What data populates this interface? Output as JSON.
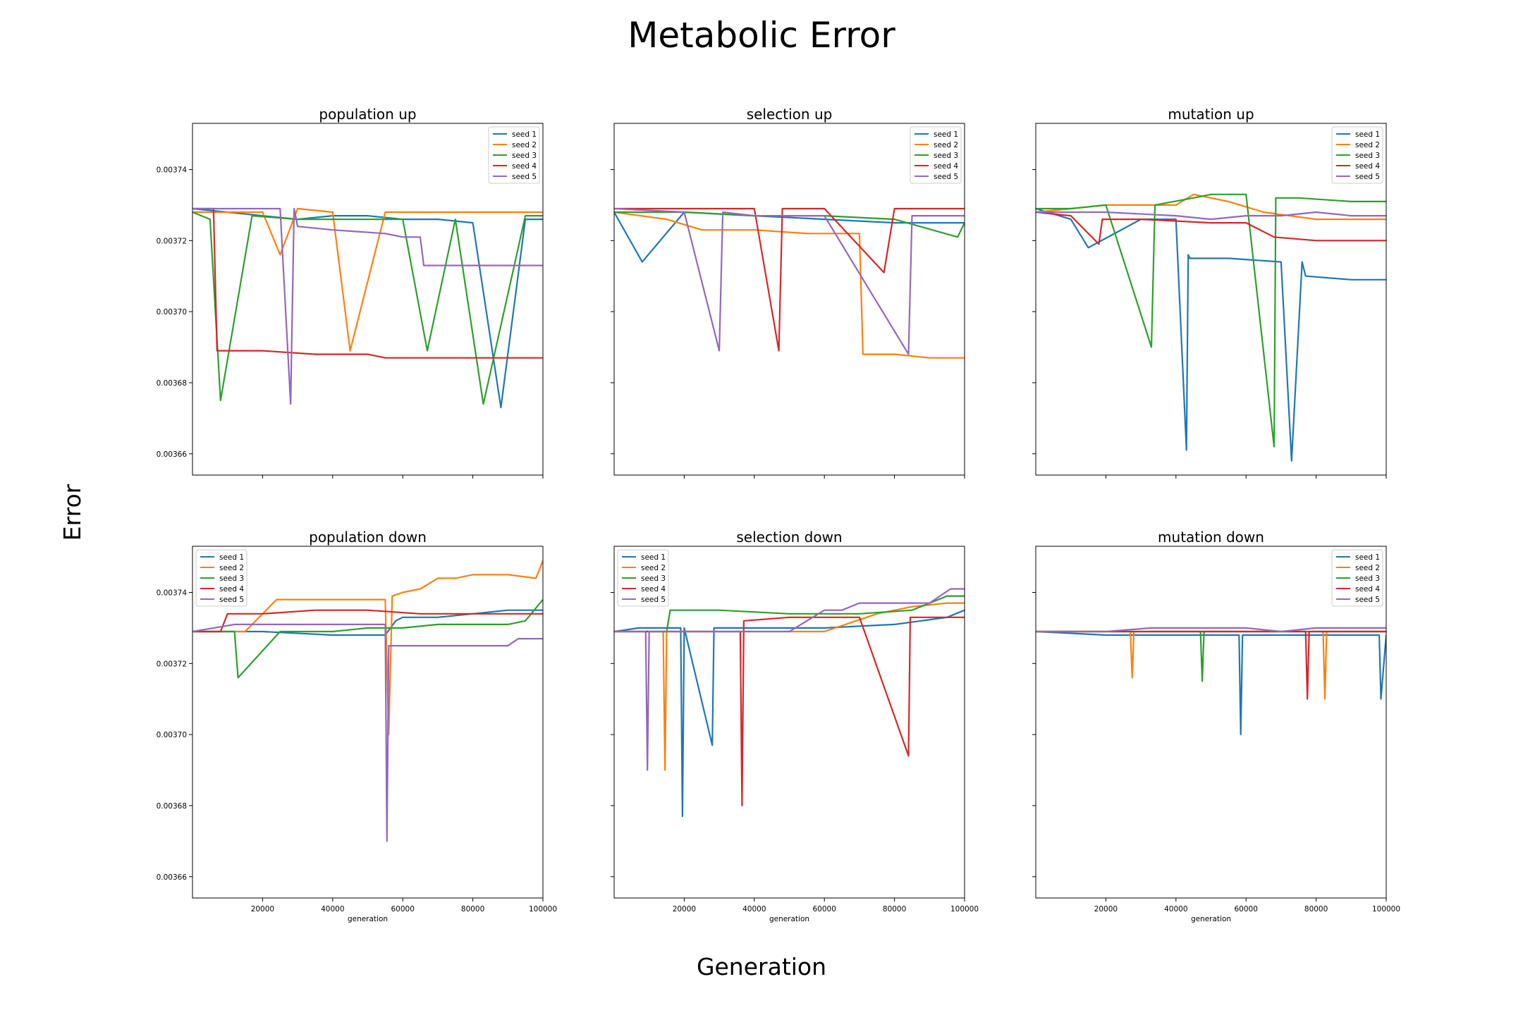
{
  "figure": {
    "title": "Metabolic Error",
    "xlabel": "Generation",
    "ylabel": "Error"
  },
  "colors": {
    "seed 1": "#1f77b4",
    "seed 2": "#ff7f0e",
    "seed 3": "#2ca02c",
    "seed 4": "#d62728",
    "seed 5": "#9467bd"
  },
  "chart_data": [
    {
      "type": "line",
      "title": "population up",
      "xlabel": "",
      "ylabel": "",
      "xlim": [
        0,
        100000
      ],
      "ylim": [
        0.003654,
        0.003753
      ],
      "x_ticks": [],
      "y_ticks": [
        "0.00366",
        "0.00368",
        "0.00370",
        "0.00372",
        "0.00374"
      ],
      "legend": "top-right",
      "series": [
        {
          "name": "seed 1",
          "x": [
            0,
            10000,
            20000,
            30000,
            40000,
            50000,
            60000,
            70000,
            80000,
            88000,
            95000,
            100000
          ],
          "y": [
            0.003729,
            0.003728,
            0.003727,
            0.003726,
            0.003727,
            0.003727,
            0.003726,
            0.003726,
            0.003725,
            0.003673,
            0.003726,
            0.003726
          ]
        },
        {
          "name": "seed 2",
          "x": [
            0,
            10000,
            20000,
            25000,
            30000,
            40000,
            45000,
            55000,
            65000,
            75000,
            85000,
            100000
          ],
          "y": [
            0.003728,
            0.003728,
            0.003728,
            0.003716,
            0.003729,
            0.003728,
            0.003689,
            0.003728,
            0.003728,
            0.003728,
            0.003728,
            0.003728
          ]
        },
        {
          "name": "seed 3",
          "x": [
            0,
            5000,
            8000,
            17000,
            30000,
            45000,
            60000,
            67000,
            75000,
            83000,
            95000,
            100000
          ],
          "y": [
            0.003728,
            0.003726,
            0.003675,
            0.003727,
            0.003726,
            0.003726,
            0.003726,
            0.003689,
            0.003726,
            0.003674,
            0.003727,
            0.003727
          ]
        },
        {
          "name": "seed 4",
          "x": [
            0,
            6000,
            7000,
            20000,
            35000,
            50000,
            55000,
            65000,
            80000,
            90000,
            100000
          ],
          "y": [
            0.003729,
            0.003729,
            0.003689,
            0.003689,
            0.003688,
            0.003688,
            0.003687,
            0.003687,
            0.003687,
            0.003687,
            0.003687
          ]
        },
        {
          "name": "seed 5",
          "x": [
            0,
            10000,
            25000,
            28000,
            29000,
            30000,
            40000,
            55000,
            60000,
            65000,
            66000,
            80000,
            100000
          ],
          "y": [
            0.003729,
            0.003729,
            0.003729,
            0.003674,
            0.003729,
            0.003724,
            0.003723,
            0.003722,
            0.003721,
            0.003721,
            0.003713,
            0.003713,
            0.003713
          ]
        }
      ]
    },
    {
      "type": "line",
      "title": "selection up",
      "xlabel": "",
      "ylabel": "",
      "xlim": [
        0,
        100000
      ],
      "ylim": [
        0.003654,
        0.003753
      ],
      "x_ticks": [],
      "y_ticks": [],
      "legend": "top-right",
      "series": [
        {
          "name": "seed 1",
          "x": [
            0,
            8000,
            20000,
            40000,
            60000,
            80000,
            100000
          ],
          "y": [
            0.003728,
            0.003714,
            0.003728,
            0.003727,
            0.003726,
            0.003725,
            0.003725
          ]
        },
        {
          "name": "seed 2",
          "x": [
            0,
            15000,
            25000,
            40000,
            55000,
            70000,
            71000,
            80000,
            90000,
            100000
          ],
          "y": [
            0.003728,
            0.003726,
            0.003723,
            0.003723,
            0.003722,
            0.003722,
            0.003688,
            0.003688,
            0.003687,
            0.003687
          ]
        },
        {
          "name": "seed 3",
          "x": [
            0,
            20000,
            40000,
            60000,
            80000,
            98000,
            100000
          ],
          "y": [
            0.003728,
            0.003728,
            0.003727,
            0.003727,
            0.003726,
            0.003721,
            0.003725
          ]
        },
        {
          "name": "seed 4",
          "x": [
            0,
            20000,
            40000,
            47000,
            48000,
            60000,
            77000,
            80000,
            100000
          ],
          "y": [
            0.003729,
            0.003729,
            0.003729,
            0.003689,
            0.003729,
            0.003729,
            0.003711,
            0.003729,
            0.003729
          ]
        },
        {
          "name": "seed 5",
          "x": [
            0,
            20000,
            30000,
            31000,
            40000,
            60000,
            84000,
            85000,
            100000
          ],
          "y": [
            0.003729,
            0.003728,
            0.003689,
            0.003728,
            0.003727,
            0.003727,
            0.003688,
            0.003727,
            0.003727
          ]
        }
      ]
    },
    {
      "type": "line",
      "title": "mutation up",
      "xlabel": "",
      "ylabel": "",
      "xlim": [
        0,
        100000
      ],
      "ylim": [
        0.003654,
        0.003753
      ],
      "x_ticks": [],
      "y_ticks": [],
      "legend": "top-right",
      "series": [
        {
          "name": "seed 1",
          "x": [
            0,
            10000,
            15000,
            30000,
            40000,
            43000,
            43500,
            44000,
            55000,
            70000,
            73000,
            76000,
            77000,
            90000,
            100000
          ],
          "y": [
            0.003729,
            0.003726,
            0.003718,
            0.003726,
            0.003726,
            0.003661,
            0.003716,
            0.003715,
            0.003715,
            0.003714,
            0.003658,
            0.003714,
            0.00371,
            0.003709,
            0.003709
          ]
        },
        {
          "name": "seed 2",
          "x": [
            0,
            10000,
            20000,
            40000,
            45000,
            55000,
            65000,
            80000,
            90000,
            100000
          ],
          "y": [
            0.003728,
            0.003729,
            0.00373,
            0.00373,
            0.003733,
            0.003731,
            0.003728,
            0.003726,
            0.003726,
            0.003726
          ]
        },
        {
          "name": "seed 3",
          "x": [
            0,
            10000,
            20000,
            33000,
            34000,
            45000,
            50000,
            60000,
            68000,
            68500,
            75000,
            90000,
            100000
          ],
          "y": [
            0.003729,
            0.003729,
            0.00373,
            0.00369,
            0.00373,
            0.003732,
            0.003733,
            0.003733,
            0.003662,
            0.003732,
            0.003732,
            0.003731,
            0.003731
          ]
        },
        {
          "name": "seed 4",
          "x": [
            0,
            10000,
            18000,
            19000,
            30000,
            50000,
            60000,
            68000,
            80000,
            100000
          ],
          "y": [
            0.003728,
            0.003727,
            0.003719,
            0.003726,
            0.003726,
            0.003725,
            0.003725,
            0.003721,
            0.00372,
            0.00372
          ]
        },
        {
          "name": "seed 5",
          "x": [
            0,
            20000,
            40000,
            50000,
            60000,
            70000,
            80000,
            90000,
            100000
          ],
          "y": [
            0.003728,
            0.003728,
            0.003727,
            0.003726,
            0.003727,
            0.003727,
            0.003728,
            0.003727,
            0.003727
          ]
        }
      ]
    },
    {
      "type": "line",
      "title": "population down",
      "xlabel": "generation",
      "ylabel": "",
      "xlim": [
        0,
        100000
      ],
      "ylim": [
        0.003654,
        0.003753
      ],
      "x_ticks": [
        "20000",
        "40000",
        "60000",
        "80000",
        "100000"
      ],
      "y_ticks": [
        "0.00366",
        "0.00368",
        "0.00370",
        "0.00372",
        "0.00374"
      ],
      "legend": "top-left",
      "series": [
        {
          "name": "seed 1",
          "x": [
            0,
            20000,
            40000,
            55000,
            58000,
            60000,
            70000,
            80000,
            90000,
            100000
          ],
          "y": [
            0.003729,
            0.003729,
            0.003728,
            0.003728,
            0.003732,
            0.003733,
            0.003733,
            0.003734,
            0.003735,
            0.003735
          ]
        },
        {
          "name": "seed 2",
          "x": [
            0,
            15000,
            24000,
            40000,
            55000,
            56000,
            57000,
            60000,
            65000,
            70000,
            75000,
            80000,
            90000,
            98000,
            100000
          ],
          "y": [
            0.003729,
            0.003729,
            0.003738,
            0.003738,
            0.003738,
            0.0037,
            0.003739,
            0.00374,
            0.003741,
            0.003744,
            0.003744,
            0.003745,
            0.003745,
            0.003744,
            0.003749
          ]
        },
        {
          "name": "seed 3",
          "x": [
            0,
            12000,
            13000,
            25000,
            40000,
            50000,
            60000,
            70000,
            80000,
            90000,
            95000,
            100000
          ],
          "y": [
            0.003729,
            0.003729,
            0.003716,
            0.003729,
            0.003729,
            0.00373,
            0.00373,
            0.003731,
            0.003731,
            0.003731,
            0.003732,
            0.003738
          ]
        },
        {
          "name": "seed 4",
          "x": [
            0,
            8000,
            10000,
            20000,
            35000,
            50000,
            65000,
            80000,
            100000
          ],
          "y": [
            0.003729,
            0.003729,
            0.003734,
            0.003734,
            0.003735,
            0.003735,
            0.003734,
            0.003734,
            0.003734
          ]
        },
        {
          "name": "seed 5",
          "x": [
            0,
            12000,
            20000,
            40000,
            55000,
            55500,
            56000,
            60000,
            75000,
            90000,
            93000,
            100000
          ],
          "y": [
            0.003729,
            0.003731,
            0.003731,
            0.003731,
            0.003731,
            0.00367,
            0.003725,
            0.003725,
            0.003725,
            0.003725,
            0.003727,
            0.003727
          ]
        }
      ]
    },
    {
      "type": "line",
      "title": "selection down",
      "xlabel": "generation",
      "ylabel": "",
      "xlim": [
        0,
        100000
      ],
      "ylim": [
        0.003654,
        0.003753
      ],
      "x_ticks": [
        "20000",
        "40000",
        "60000",
        "80000",
        "100000"
      ],
      "y_ticks": [],
      "legend": "top-left",
      "series": [
        {
          "name": "seed 1",
          "x": [
            0,
            7000,
            19000,
            19500,
            20000,
            28000,
            28500,
            40000,
            60000,
            80000,
            95000,
            100000
          ],
          "y": [
            0.003729,
            0.00373,
            0.00373,
            0.003677,
            0.00373,
            0.003697,
            0.00373,
            0.00373,
            0.00373,
            0.003731,
            0.003733,
            0.003735
          ]
        },
        {
          "name": "seed 2",
          "x": [
            0,
            14000,
            14500,
            15000,
            40000,
            60000,
            75000,
            85000,
            95000,
            100000
          ],
          "y": [
            0.003729,
            0.003729,
            0.00369,
            0.003729,
            0.003729,
            0.003729,
            0.003734,
            0.003736,
            0.003737,
            0.003737
          ]
        },
        {
          "name": "seed 3",
          "x": [
            0,
            15000,
            16000,
            30000,
            50000,
            70000,
            85000,
            95000,
            100000
          ],
          "y": [
            0.003729,
            0.003729,
            0.003735,
            0.003735,
            0.003734,
            0.003734,
            0.003735,
            0.003739,
            0.003739
          ]
        },
        {
          "name": "seed 4",
          "x": [
            0,
            20000,
            36000,
            36500,
            37000,
            50000,
            70000,
            84000,
            84500,
            85000,
            100000
          ],
          "y": [
            0.003729,
            0.003729,
            0.003729,
            0.00368,
            0.003732,
            0.003733,
            0.003733,
            0.003694,
            0.003733,
            0.003733,
            0.003733
          ]
        },
        {
          "name": "seed 5",
          "x": [
            0,
            9000,
            9500,
            10000,
            30000,
            50000,
            60000,
            65000,
            70000,
            80000,
            90000,
            96000,
            100000
          ],
          "y": [
            0.003729,
            0.003729,
            0.00369,
            0.003729,
            0.003729,
            0.003729,
            0.003735,
            0.003735,
            0.003737,
            0.003737,
            0.003737,
            0.003741,
            0.003741
          ]
        }
      ]
    },
    {
      "type": "line",
      "title": "mutation down",
      "xlabel": "generation",
      "ylabel": "",
      "xlim": [
        0,
        100000
      ],
      "ylim": [
        0.003654,
        0.003753
      ],
      "x_ticks": [
        "20000",
        "40000",
        "60000",
        "80000",
        "100000"
      ],
      "y_ticks": [],
      "legend": "top-right",
      "series": [
        {
          "name": "seed 1",
          "x": [
            0,
            20000,
            40000,
            58000,
            58500,
            59000,
            80000,
            98000,
            98500,
            100000
          ],
          "y": [
            0.003729,
            0.003728,
            0.003728,
            0.003728,
            0.0037,
            0.003728,
            0.003728,
            0.003728,
            0.00371,
            0.003728
          ]
        },
        {
          "name": "seed 2",
          "x": [
            0,
            27000,
            27500,
            28000,
            60000,
            82000,
            82500,
            83000,
            100000
          ],
          "y": [
            0.003729,
            0.003729,
            0.003716,
            0.003729,
            0.003729,
            0.003729,
            0.00371,
            0.003729,
            0.003729
          ]
        },
        {
          "name": "seed 3",
          "x": [
            0,
            20000,
            47000,
            47500,
            48000,
            70000,
            100000
          ],
          "y": [
            0.003729,
            0.003729,
            0.003729,
            0.003715,
            0.003729,
            0.003729,
            0.003729
          ]
        },
        {
          "name": "seed 4",
          "x": [
            0,
            30000,
            60000,
            77000,
            77500,
            78000,
            100000
          ],
          "y": [
            0.003729,
            0.003729,
            0.003729,
            0.003729,
            0.00371,
            0.003729,
            0.003729
          ]
        },
        {
          "name": "seed 5",
          "x": [
            0,
            20000,
            33000,
            40000,
            60000,
            70000,
            80000,
            100000
          ],
          "y": [
            0.003729,
            0.003729,
            0.00373,
            0.00373,
            0.00373,
            0.003729,
            0.00373,
            0.00373
          ]
        }
      ]
    }
  ]
}
